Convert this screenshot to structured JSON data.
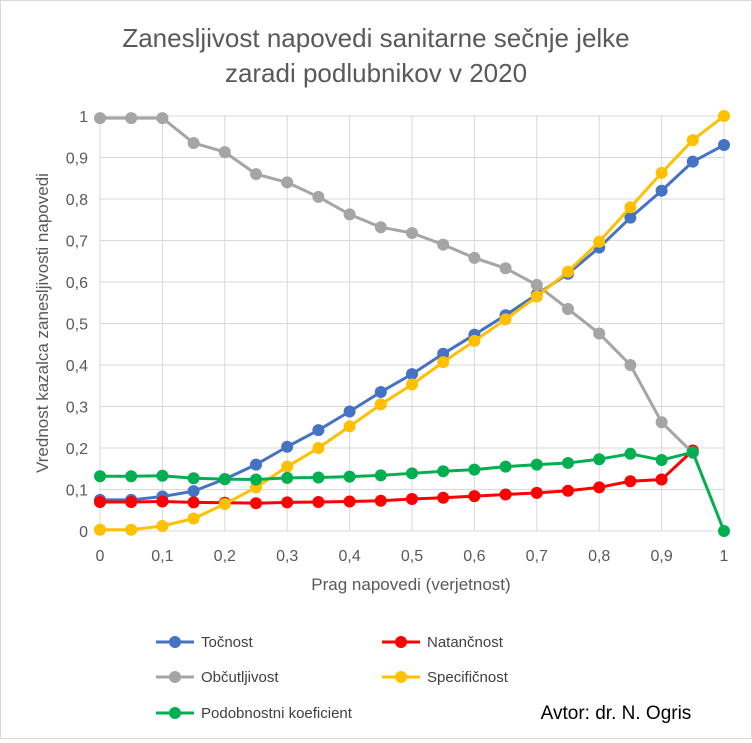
{
  "colors": {
    "accuracy": "#4472C4",
    "precision": "#FF0000",
    "sensitivity": "#A5A5A5",
    "specificity": "#FFC000",
    "likelihood": "#00B050",
    "grid": "#d9d9d9",
    "text": "#595959"
  },
  "chart_data": {
    "type": "line",
    "title_line1": "Zanesljivost napovedi sanitarne sečnje jelke",
    "title_line2": "zaradi podlubnikov v 2020",
    "xlabel": "Prag napovedi (verjetnost)",
    "ylabel": "Vrednost kazalca zanesljivosti napovedi",
    "xlim": [
      0,
      1
    ],
    "ylim": [
      0,
      1
    ],
    "x_ticks": [
      "0",
      "0,1",
      "0,2",
      "0,3",
      "0,4",
      "0,5",
      "0,6",
      "0,7",
      "0,8",
      "0,9",
      "1"
    ],
    "y_ticks": [
      "0",
      "0,1",
      "0,2",
      "0,3",
      "0,4",
      "0,5",
      "0,6",
      "0,7",
      "0,8",
      "0,9",
      "1"
    ],
    "grid": true,
    "legend_position": "bottom",
    "x": [
      0,
      0.05,
      0.1,
      0.15,
      0.2,
      0.25,
      0.3,
      0.35,
      0.4,
      0.45,
      0.5,
      0.55,
      0.6,
      0.65,
      0.7,
      0.75,
      0.8,
      0.85,
      0.9,
      0.95,
      1
    ],
    "series": [
      {
        "name": "Točnost",
        "key": "accuracy",
        "values": [
          0.075,
          0.075,
          0.083,
          0.096,
          0.125,
          0.16,
          0.203,
          0.243,
          0.288,
          0.335,
          0.378,
          0.427,
          0.473,
          0.52,
          0.57,
          0.62,
          0.683,
          0.755,
          0.82,
          0.89,
          0.93
        ]
      },
      {
        "name": "Natančnost",
        "key": "precision",
        "values": [
          0.07,
          0.07,
          0.071,
          0.069,
          0.068,
          0.067,
          0.069,
          0.07,
          0.071,
          0.073,
          0.077,
          0.08,
          0.084,
          0.088,
          0.092,
          0.097,
          0.105,
          0.12,
          0.124,
          0.194,
          null
        ]
      },
      {
        "name": "Občutljivost",
        "key": "sensitivity",
        "values": [
          0.995,
          0.995,
          0.995,
          0.935,
          0.913,
          0.86,
          0.84,
          0.805,
          0.763,
          0.732,
          0.718,
          0.69,
          0.658,
          0.633,
          0.593,
          0.535,
          0.476,
          0.4,
          0.262,
          0.188,
          null
        ]
      },
      {
        "name": "Specifičnost",
        "key": "specificity",
        "values": [
          0.003,
          0.003,
          0.012,
          0.03,
          0.065,
          0.105,
          0.155,
          0.2,
          0.252,
          0.305,
          0.353,
          0.407,
          0.458,
          0.51,
          0.565,
          0.625,
          0.697,
          0.78,
          0.863,
          0.942,
          1.0
        ]
      },
      {
        "name": "Podobnostni koeficient",
        "key": "likelihood",
        "values": [
          0.132,
          0.132,
          0.133,
          0.127,
          0.125,
          0.124,
          0.128,
          0.129,
          0.131,
          0.134,
          0.139,
          0.144,
          0.148,
          0.155,
          0.16,
          0.164,
          0.173,
          0.186,
          0.171,
          0.19,
          0.0
        ]
      }
    ],
    "author_note": "Avtor: dr. N. Ogris"
  }
}
